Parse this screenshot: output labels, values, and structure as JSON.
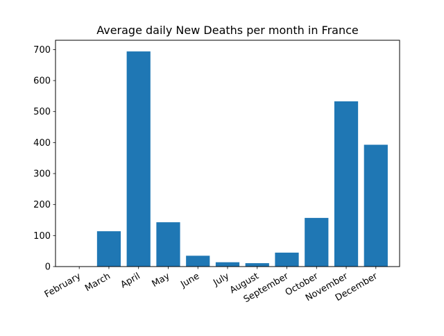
{
  "chart_data": {
    "type": "bar",
    "title": "Average daily New Deaths per month in France",
    "xlabel": "",
    "ylabel": "",
    "categories": [
      "February",
      "March",
      "April",
      "May",
      "June",
      "July",
      "August",
      "September",
      "October",
      "November",
      "December"
    ],
    "values": [
      0.1,
      114,
      694,
      143,
      35,
      14,
      11,
      45,
      157,
      533,
      393
    ],
    "ylim": [
      0,
      730
    ],
    "yticks": [
      0,
      100,
      200,
      300,
      400,
      500,
      600,
      700
    ],
    "bar_color": "#1f77b4",
    "grid": false,
    "legend": false
  }
}
